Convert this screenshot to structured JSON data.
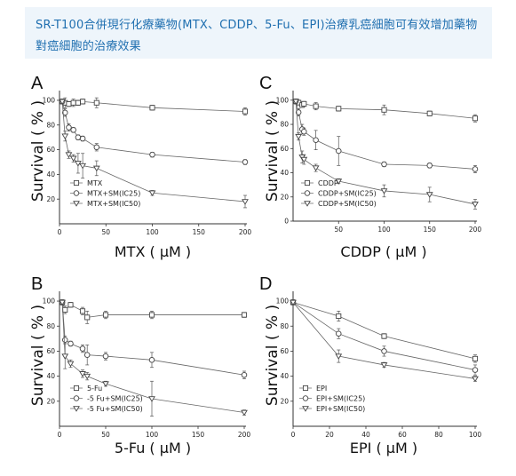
{
  "header": {
    "line1": "SR-T100合併現行化療藥物(MTX、CDDP、5-Fu、EPI)治療乳癌細胞可有效增加藥物",
    "line2": "對癌細胞的治療效果"
  },
  "chart_data": [
    {
      "panel": "A",
      "type": "line",
      "xlabel": "MTX ( μM )",
      "ylabel": "Survival ( % )",
      "xlim": [
        0,
        200
      ],
      "ylim": [
        0,
        105
      ],
      "xticks": [
        0,
        50,
        100,
        150,
        200
      ],
      "yticks": [
        20,
        40,
        60,
        80,
        100
      ],
      "legend_position": "bottom-left",
      "series": [
        {
          "name": "MTX",
          "marker": "square",
          "x": [
            3,
            6,
            10,
            15,
            20,
            25,
            40,
            100,
            200
          ],
          "y": [
            99,
            98,
            97,
            98,
            98,
            99,
            98,
            94,
            91
          ],
          "err": [
            2,
            4,
            2,
            3,
            2,
            2,
            4,
            2,
            3
          ]
        },
        {
          "name": "MTX+SM(IC25)",
          "marker": "circle",
          "x": [
            3,
            6,
            10,
            15,
            20,
            25,
            40,
            100,
            200
          ],
          "y": [
            99,
            90,
            78,
            76,
            70,
            69,
            62,
            56,
            50
          ],
          "err": [
            2,
            3,
            3,
            2,
            2,
            2,
            3,
            2,
            2
          ]
        },
        {
          "name": "MTX+SM(IC50)",
          "marker": "triangle",
          "x": [
            3,
            6,
            10,
            15,
            20,
            25,
            40,
            100,
            200
          ],
          "y": [
            99,
            71,
            56,
            53,
            49,
            47,
            45,
            25,
            18
          ],
          "err": [
            2,
            4,
            3,
            3,
            8,
            10,
            6,
            2,
            5
          ]
        }
      ]
    },
    {
      "panel": "C",
      "type": "line",
      "xlabel": "CDDP ( μM )",
      "ylabel": "Survival ( % )",
      "xlim": [
        0,
        200
      ],
      "ylim": [
        0,
        105
      ],
      "xticks": [
        50,
        100,
        150,
        200
      ],
      "yticks": [
        0,
        20,
        40,
        60,
        80,
        100
      ],
      "legend_position": "bottom-left",
      "series": [
        {
          "name": "CDDP",
          "marker": "square",
          "x": [
            3,
            6,
            10,
            12,
            25,
            50,
            100,
            150,
            200
          ],
          "y": [
            99,
            98,
            96,
            97,
            95,
            93,
            92,
            89,
            85
          ],
          "err": [
            2,
            2,
            2,
            2,
            3,
            2,
            4,
            2,
            3
          ]
        },
        {
          "name": "CDDP+SM(IC25)",
          "marker": "circle",
          "x": [
            3,
            6,
            10,
            12,
            25,
            50,
            100,
            150,
            200
          ],
          "y": [
            99,
            90,
            76,
            74,
            67,
            58,
            47,
            46,
            43
          ],
          "err": [
            2,
            3,
            4,
            3,
            8,
            12,
            2,
            2,
            3
          ]
        },
        {
          "name": "CDDP+SM(IC50)",
          "marker": "triangle",
          "x": [
            3,
            6,
            10,
            12,
            25,
            50,
            100,
            150,
            200
          ],
          "y": [
            99,
            70,
            53,
            51,
            44,
            33,
            25,
            22,
            14
          ],
          "err": [
            2,
            3,
            5,
            4,
            3,
            2,
            5,
            6,
            4
          ]
        }
      ]
    },
    {
      "panel": "B",
      "type": "line",
      "xlabel": "5-Fu ( μM )",
      "ylabel": "Survival ( % )",
      "xlim": [
        0,
        200
      ],
      "ylim": [
        0,
        105
      ],
      "xticks": [
        0,
        50,
        100,
        150,
        200
      ],
      "yticks": [
        20,
        40,
        60,
        80,
        100
      ],
      "legend_position": "bottom-left",
      "series": [
        {
          "name": "5-Fu",
          "marker": "square",
          "x": [
            3,
            6,
            12,
            25,
            30,
            50,
            100,
            200
          ],
          "y": [
            99,
            93,
            97,
            92,
            87,
            89,
            89,
            89
          ],
          "err": [
            2,
            3,
            2,
            3,
            5,
            3,
            3,
            2
          ]
        },
        {
          "name": "-5 Fu+SM(IC25)",
          "marker": "circle",
          "x": [
            3,
            6,
            12,
            25,
            30,
            50,
            100,
            200
          ],
          "y": [
            99,
            69,
            66,
            62,
            57,
            56,
            53,
            41
          ],
          "err": [
            2,
            3,
            2,
            3,
            8,
            3,
            6,
            3
          ]
        },
        {
          "name": "-5 Fu+SM(IC50)",
          "marker": "triangle",
          "x": [
            3,
            6,
            12,
            25,
            30,
            50,
            100,
            200
          ],
          "y": [
            99,
            56,
            50,
            42,
            40,
            34,
            22,
            11
          ],
          "err": [
            2,
            10,
            3,
            3,
            3,
            2,
            14,
            2
          ]
        }
      ]
    },
    {
      "panel": "D",
      "type": "line",
      "xlabel": "EPI ( μM )",
      "ylabel": "Survival ( % )",
      "xlim": [
        0,
        100
      ],
      "ylim": [
        0,
        105
      ],
      "xticks": [
        0,
        20,
        40,
        60,
        80,
        100
      ],
      "yticks": [
        20,
        40,
        60,
        80,
        100
      ],
      "legend_position": "bottom-left",
      "series": [
        {
          "name": "EPI",
          "marker": "square",
          "x": [
            0,
            25,
            50,
            100
          ],
          "y": [
            99,
            88,
            72,
            54
          ],
          "err": [
            2,
            4,
            2,
            3
          ]
        },
        {
          "name": "EPI+SM(IC25)",
          "marker": "circle",
          "x": [
            0,
            25,
            50,
            100
          ],
          "y": [
            99,
            74,
            60,
            45
          ],
          "err": [
            2,
            4,
            4,
            4
          ]
        },
        {
          "name": "EPI+SM(IC50)",
          "marker": "triangle",
          "x": [
            0,
            25,
            50,
            100
          ],
          "y": [
            99,
            56,
            49,
            38
          ],
          "err": [
            2,
            5,
            2,
            2
          ]
        }
      ]
    }
  ]
}
